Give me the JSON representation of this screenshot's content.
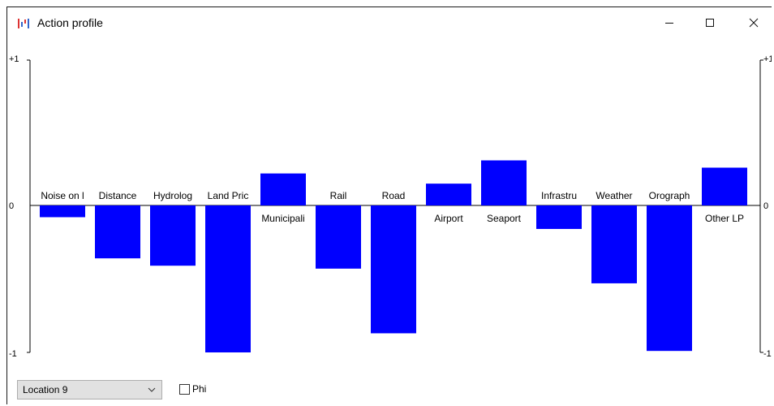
{
  "window": {
    "title": "Action profile",
    "icon": "bar-chart-icon",
    "controls": {
      "minimize": "minimize-icon",
      "maximize": "maximize-icon",
      "close": "close-icon"
    }
  },
  "controls": {
    "location_value": "Location 9",
    "phi_label": "Phi",
    "phi_checked": false
  },
  "chart_data": {
    "type": "bar",
    "categories": [
      "Noise on l",
      "Distance",
      "Hydrolog",
      "Land Pric",
      "Municipali",
      "Rail",
      "Road",
      "Airport",
      "Seaport",
      "Infrastru",
      "Weather",
      "Orograph",
      "Other LP"
    ],
    "values": [
      -0.08,
      -0.36,
      -0.41,
      -1.0,
      0.22,
      -0.43,
      -0.87,
      0.15,
      0.31,
      -0.16,
      -0.53,
      -0.99,
      0.26
    ],
    "ylim": [
      -1,
      1
    ],
    "left_ticks": [
      "+1",
      "0",
      "-1"
    ],
    "right_ticks": [
      "+1",
      "0",
      "-1"
    ],
    "bar_color": "#0000ff",
    "grid": false
  }
}
